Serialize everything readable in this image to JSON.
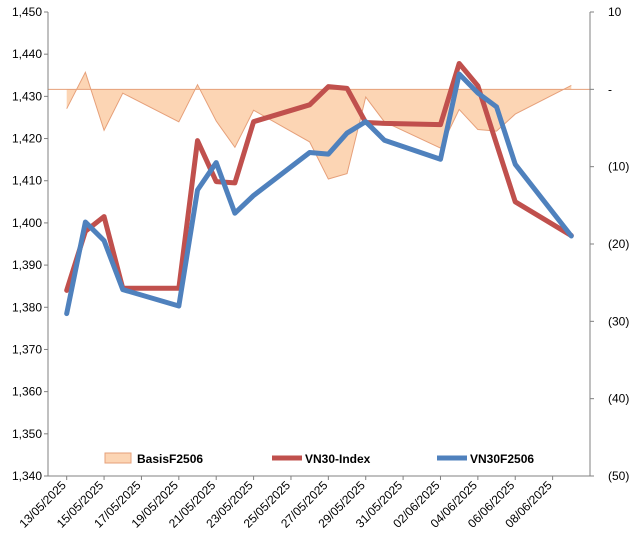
{
  "chart_data": {
    "type": "line",
    "title": "",
    "xlabel": "",
    "ylabel": "",
    "x_dates": [
      "13/05/2025",
      "14/05/2025",
      "15/05/2025",
      "16/05/2025",
      "19/05/2025",
      "20/05/2025",
      "21/05/2025",
      "22/05/2025",
      "23/05/2025",
      "26/05/2025",
      "27/05/2025",
      "28/05/2025",
      "29/05/2025",
      "30/05/2025",
      "02/06/2025",
      "03/06/2025",
      "04/06/2025",
      "05/06/2025",
      "06/06/2025",
      "09/06/2025"
    ],
    "x_tick_labels": [
      "13/05/2025",
      "15/05/2025",
      "17/05/2025",
      "19/05/2025",
      "21/05/2025",
      "23/05/2025",
      "25/05/2025",
      "27/05/2025",
      "29/05/2025",
      "31/05/2025",
      "02/06/2025",
      "04/06/2025",
      "06/06/2025",
      "08/06/2025"
    ],
    "y_left": {
      "min": 1340,
      "max": 1450,
      "step": 10,
      "tick_labels": [
        "1,340",
        "1,350",
        "1,360",
        "1,370",
        "1,380",
        "1,390",
        "1,400",
        "1,410",
        "1,420",
        "1,430",
        "1,440",
        "1,450"
      ]
    },
    "y_right": {
      "min": -50,
      "max": 10,
      "step": 10,
      "tick_labels": [
        "(50)",
        "(40)",
        "(30)",
        "(20)",
        "(10)",
        "-",
        "10"
      ]
    },
    "series": [
      {
        "name": "BasisF2506",
        "kind": "area",
        "axis": "right",
        "color": "#fcd5b4",
        "stroke": "#e6a07a",
        "values": [
          -2.5,
          2.2,
          -5.3,
          -0.5,
          -4.2,
          0.6,
          -4.1,
          -7.5,
          -2.7,
          -6.8,
          -11.6,
          -10.9,
          -1.0,
          -4.2,
          -7.6,
          -2.6,
          -5.2,
          -5.4,
          -3.2,
          0.5
        ]
      },
      {
        "name": "VN30-Index",
        "kind": "line",
        "axis": "left",
        "color": "#c0504d",
        "values": [
          1384,
          1398,
          1401.5,
          1384.5,
          1384.5,
          1419.5,
          1409.8,
          1409.5,
          1424,
          1428,
          1432.3,
          1431.9,
          1423.8,
          1423.6,
          1423.3,
          1437.8,
          1432.5,
          1418.7,
          1405,
          1397
        ]
      },
      {
        "name": "VN30F2506",
        "kind": "line",
        "axis": "left",
        "color": "#4f81bd",
        "values": [
          1378.5,
          1400.2,
          1395.8,
          1384.2,
          1380.3,
          1407.8,
          1414.3,
          1402.3,
          1406.5,
          1416.7,
          1416.3,
          1421.3,
          1424,
          1419.6,
          1415.1,
          1435.3,
          1430.8,
          1427.5,
          1413.9,
          1396.9
        ]
      }
    ],
    "legend": {
      "position": "bottom-inside"
    },
    "grid": false
  }
}
